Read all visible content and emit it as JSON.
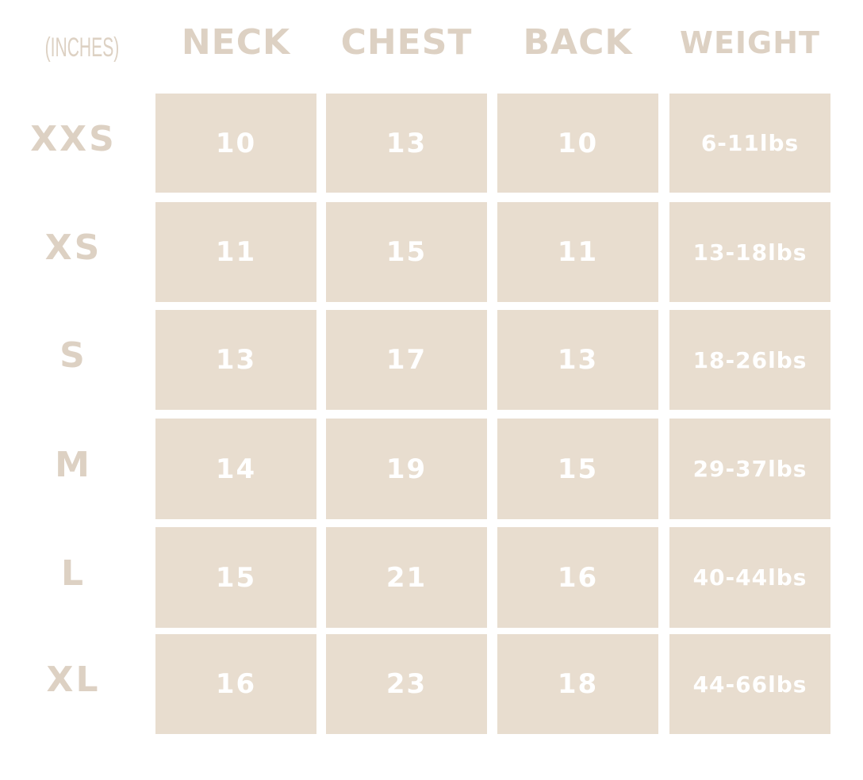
{
  "unit_label": "(INCHES)",
  "columns": [
    "NECK",
    "CHEST",
    "BACK",
    "WEIGHT"
  ],
  "rows": [
    {
      "size": "XXS",
      "values": [
        "10",
        "13",
        "10",
        "6-11lbs"
      ]
    },
    {
      "size": "XS",
      "values": [
        "11",
        "15",
        "11",
        "13-18lbs"
      ]
    },
    {
      "size": "S",
      "values": [
        "13",
        "17",
        "13",
        "18-26lbs"
      ]
    },
    {
      "size": "M",
      "values": [
        "14",
        "19",
        "15",
        "29-37lbs"
      ]
    },
    {
      "size": "L",
      "values": [
        "15",
        "21",
        "16",
        "40-44lbs"
      ]
    },
    {
      "size": "XL",
      "values": [
        "16",
        "23",
        "18",
        "44-66lbs"
      ]
    }
  ],
  "colors": {
    "cell_bg": "#e8ddcf",
    "label_text": "#ddd1c3",
    "cell_text": "#ffffff"
  }
}
